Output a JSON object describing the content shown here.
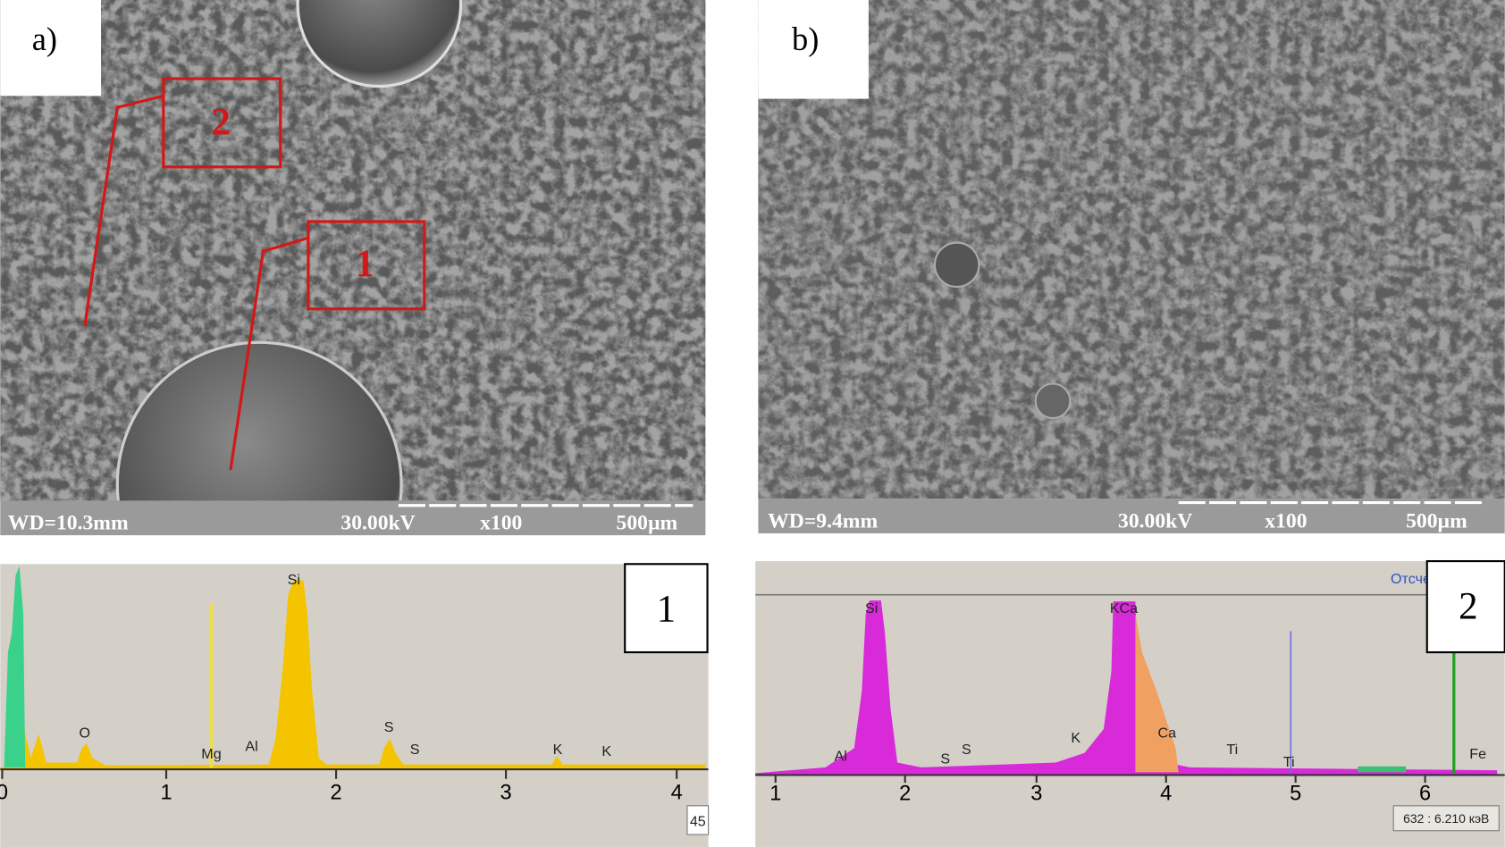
{
  "panels": [
    {
      "label": "a)",
      "info": {
        "wd": "WD=10.3mm",
        "voltage": "30.00kV",
        "magnification": "x100",
        "scale": "500µm"
      },
      "regions": [
        "2",
        "1"
      ]
    },
    {
      "label": "b)",
      "info": {
        "wd": "WD=9.4mm",
        "voltage": "30.00kV",
        "magnification": "x100",
        "scale": "500µm"
      }
    }
  ],
  "spectra": [
    {
      "number": "1",
      "x_ticks": [
        0,
        1,
        2,
        3,
        4
      ],
      "peaks": [
        "Si",
        "O",
        "Mg",
        "Al",
        "S",
        "S",
        "K",
        "K"
      ],
      "counter": "45"
    },
    {
      "number": "2",
      "header": "Отсче",
      "x_ticks": [
        1,
        2,
        3,
        4,
        5,
        6
      ],
      "peaks": [
        "Si",
        "KCa",
        "Al",
        "S",
        "S",
        "K",
        "Ca",
        "Ti",
        "Ti",
        "Fe"
      ],
      "cursor": "632 : 6.210 кэВ"
    }
  ]
}
